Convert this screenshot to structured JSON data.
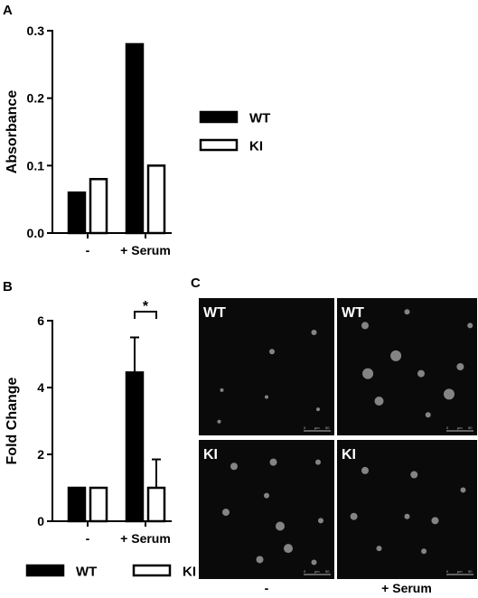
{
  "panels": {
    "a": "A",
    "b": "B",
    "c": "C"
  },
  "chart_data": [
    {
      "id": "A",
      "type": "bar",
      "categories": [
        "-",
        "+ Serum"
      ],
      "series": [
        {
          "name": "WT",
          "values": [
            0.06,
            0.28
          ],
          "fill": "#000000"
        },
        {
          "name": "KI",
          "values": [
            0.08,
            0.1
          ],
          "fill": "#ffffff"
        }
      ],
      "ylabel": "Absorbance",
      "xlabel": "",
      "ylim": [
        0,
        0.3
      ],
      "yticks": [
        0.0,
        0.1,
        0.2,
        0.3
      ],
      "ytick_labels": [
        "0.0",
        "0.1",
        "0.2",
        "0.3"
      ],
      "legend": [
        {
          "name": "WT",
          "fill": "#000000"
        },
        {
          "name": "KI",
          "fill": "#ffffff"
        }
      ],
      "legend_position": "right",
      "grid": false
    },
    {
      "id": "B",
      "type": "bar",
      "categories": [
        "-",
        "+ Serum"
      ],
      "series": [
        {
          "name": "WT",
          "values": [
            1.0,
            4.45
          ],
          "errors": [
            0,
            1.05
          ],
          "fill": "#000000"
        },
        {
          "name": "KI",
          "values": [
            1.0,
            1.0
          ],
          "errors": [
            0,
            0.85
          ],
          "fill": "#ffffff"
        }
      ],
      "ylabel": "Fold Change",
      "xlabel": "",
      "ylim": [
        0,
        6
      ],
      "yticks": [
        0,
        2,
        4,
        6
      ],
      "ytick_labels": [
        "0",
        "2",
        "4",
        "6"
      ],
      "significance": {
        "category": "+ Serum",
        "label": "*"
      },
      "legend": [
        {
          "name": "WT",
          "fill": "#000000"
        },
        {
          "name": "KI",
          "fill": "#ffffff"
        }
      ],
      "legend_position": "bottom",
      "grid": false
    }
  ],
  "micrographs": {
    "tiles": [
      {
        "label": "WT",
        "condition": "-",
        "scale": [
          "0",
          "μm",
          "50"
        ]
      },
      {
        "label": "WT",
        "condition": "+ Serum",
        "scale": [
          "0",
          "μm",
          "50"
        ]
      },
      {
        "label": "KI",
        "condition": "-",
        "scale": [
          "0",
          "μm",
          "50"
        ]
      },
      {
        "label": "KI",
        "condition": "+ Serum",
        "scale": [
          "0",
          "μm",
          "50"
        ]
      }
    ],
    "xlabels": [
      "-",
      "+ Serum"
    ],
    "background": "#0a0a0a"
  }
}
